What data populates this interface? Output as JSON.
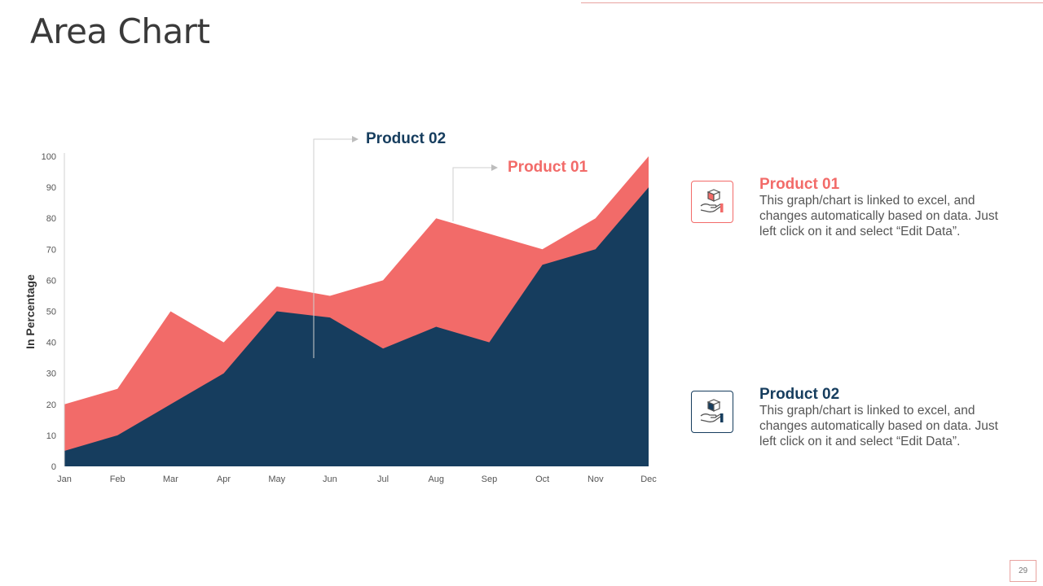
{
  "page": {
    "title": "Area Chart",
    "page_number": "29"
  },
  "colors": {
    "product01": "#F26B69",
    "product02": "#163D5E",
    "accent_rule": "#E8A3A0"
  },
  "callouts": {
    "product02": "Product 02",
    "product01": "Product 01"
  },
  "side": {
    "items": [
      {
        "heading": "Product 01",
        "text": "This graph/chart  is linked to excel, and changes automatically based on data. Just left click on it and select “Edit Data”.",
        "icon": "hand-holding-box-icon"
      },
      {
        "heading": "Product 02",
        "text": "This graph/chart  is linked to excel, and changes automatically based on data. Just left click on it and select “Edit Data”.",
        "icon": "hand-holding-box-icon"
      }
    ]
  },
  "chart_data": {
    "type": "area",
    "title": "",
    "xlabel": "",
    "ylabel": "In Percentage",
    "categories": [
      "Jan",
      "Feb",
      "Mar",
      "Apr",
      "May",
      "Jun",
      "Jul",
      "Aug",
      "Sep",
      "Oct",
      "Nov",
      "Dec"
    ],
    "series": [
      {
        "name": "Product 01",
        "values": [
          20,
          25,
          50,
          40,
          58,
          55,
          60,
          80,
          75,
          70,
          80,
          100
        ]
      },
      {
        "name": "Product 02",
        "values": [
          5,
          10,
          20,
          30,
          50,
          48,
          38,
          45,
          40,
          65,
          70,
          90
        ]
      }
    ],
    "ylim": [
      0,
      100
    ],
    "yticks": [
      0,
      10,
      20,
      30,
      40,
      50,
      60,
      70,
      80,
      90,
      100
    ],
    "grid": false,
    "legend": "none"
  }
}
